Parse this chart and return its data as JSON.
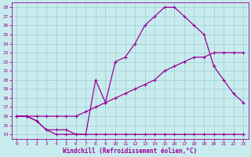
{
  "xlabel": "Windchill (Refroidissement éolien,°C)",
  "background_color": "#c8ecee",
  "grid_color": "#9ccdd4",
  "line_color": "#990099",
  "xlim": [
    -0.5,
    23.5
  ],
  "ylim": [
    13.5,
    28.5
  ],
  "xticks": [
    0,
    1,
    2,
    3,
    4,
    5,
    6,
    7,
    8,
    9,
    10,
    11,
    12,
    13,
    14,
    15,
    16,
    17,
    18,
    19,
    20,
    21,
    22,
    23
  ],
  "yticks": [
    14,
    15,
    16,
    17,
    18,
    19,
    20,
    21,
    22,
    23,
    24,
    25,
    26,
    27,
    28
  ],
  "line1_x": [
    0,
    1,
    2,
    3,
    4,
    5,
    6,
    7,
    8,
    9,
    10,
    11,
    12,
    13,
    14,
    15,
    16,
    17,
    18,
    19,
    20,
    21,
    22,
    23
  ],
  "line1_y": [
    16,
    16,
    15.5,
    14.5,
    14.5,
    14.5,
    14,
    14,
    14,
    14,
    14,
    14,
    14,
    14,
    14,
    14,
    14,
    14,
    14,
    14,
    14,
    14,
    14,
    14
  ],
  "line2_x": [
    0,
    1,
    2,
    3,
    4,
    5,
    6,
    7,
    8,
    9,
    10,
    11,
    12,
    13,
    14,
    15,
    16,
    17,
    18,
    19,
    20,
    21,
    22,
    23
  ],
  "line2_y": [
    16,
    16,
    16,
    16,
    16,
    16,
    16,
    16.5,
    17,
    17.5,
    18,
    18.5,
    19,
    19.5,
    20,
    21,
    21.5,
    22,
    22.5,
    22.5,
    23,
    23,
    23,
    23
  ],
  "line3_x": [
    0,
    1,
    2,
    3,
    4,
    5,
    6,
    7,
    8,
    9,
    10,
    11,
    12,
    13,
    14,
    15,
    16,
    17,
    18,
    19,
    20,
    21,
    22,
    23
  ],
  "line3_y": [
    16,
    16,
    15.5,
    14.5,
    14,
    14,
    14,
    14,
    20,
    17.5,
    22,
    22.5,
    24,
    26,
    27,
    28,
    28,
    27,
    26,
    25,
    21.5,
    20,
    18.5,
    17.5
  ],
  "marker": "+",
  "markersize": 3,
  "markeredgewidth": 0.8,
  "linewidth": 0.9
}
